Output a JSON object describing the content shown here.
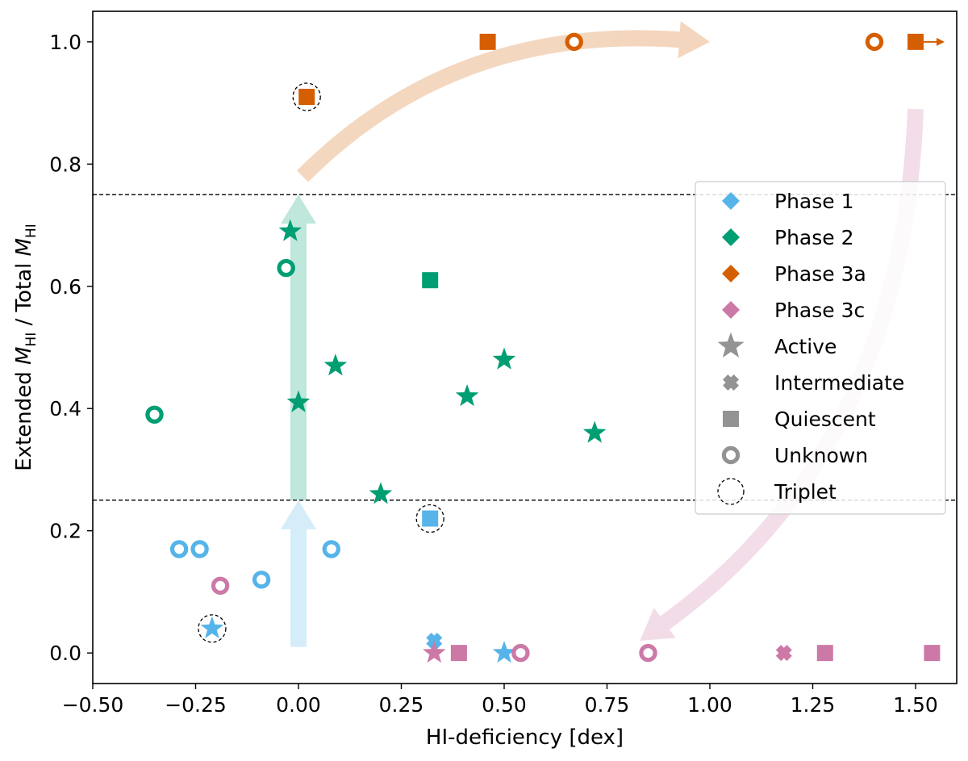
{
  "chart_data": {
    "type": "scatter",
    "xlabel": "HI-deficiency [dex]",
    "ylabel": {
      "prefix": "Extended ",
      "m": "M",
      "sub": "HI",
      "middle": " / Total "
    },
    "xlim": [
      -0.5,
      1.6
    ],
    "ylim": [
      -0.05,
      1.05
    ],
    "xticks": [
      -0.5,
      -0.25,
      0.0,
      0.25,
      0.5,
      0.75,
      1.0,
      1.25,
      1.5
    ],
    "xtick_labels": [
      "−0.50",
      "−0.25",
      "0.00",
      "0.25",
      "0.50",
      "0.75",
      "1.00",
      "1.25",
      "1.50"
    ],
    "yticks": [
      0.0,
      0.2,
      0.4,
      0.6,
      0.8,
      1.0
    ],
    "ytick_labels": [
      "0.0",
      "0.2",
      "0.4",
      "0.6",
      "0.8",
      "1.0"
    ],
    "hlines": [
      0.25,
      0.75
    ],
    "colors": {
      "phase1": "#56B4E9",
      "phase2": "#009E73",
      "phase3a": "#D55E00",
      "phase3c": "#CC79A7",
      "gray": "#939393"
    },
    "arrows": [
      {
        "name": "phase1-arrow",
        "color": "#56B4E9",
        "from": [
          0.0,
          0.01
        ],
        "to": [
          0.0,
          0.25
        ]
      },
      {
        "name": "phase2-arrow",
        "color": "#009E73",
        "from": [
          0.0,
          0.25
        ],
        "to": [
          0.0,
          0.75
        ]
      },
      {
        "name": "phase3a-arrow",
        "color": "#D55E00",
        "from": [
          0.01,
          0.78
        ],
        "ctrl": [
          0.38,
          1.03
        ],
        "to": [
          1.0,
          1.0
        ]
      },
      {
        "name": "phase3c-arrow",
        "color": "#CC79A7",
        "from": [
          1.5,
          0.89
        ],
        "ctrl": [
          1.47,
          0.33
        ],
        "to": [
          0.83,
          0.02
        ]
      }
    ],
    "points": [
      {
        "phase": "phase1",
        "marker": "unknown",
        "x": -0.29,
        "y": 0.17
      },
      {
        "phase": "phase1",
        "marker": "unknown",
        "x": -0.24,
        "y": 0.17
      },
      {
        "phase": "phase1",
        "marker": "unknown",
        "x": -0.09,
        "y": 0.12
      },
      {
        "phase": "phase1",
        "marker": "unknown",
        "x": 0.08,
        "y": 0.17
      },
      {
        "phase": "phase1",
        "marker": "active",
        "x": -0.21,
        "y": 0.04,
        "triplet": true
      },
      {
        "phase": "phase1",
        "marker": "quiescent",
        "x": 0.32,
        "y": 0.22,
        "triplet": true
      },
      {
        "phase": "phase1",
        "marker": "intermediate",
        "x": 0.33,
        "y": 0.02
      },
      {
        "phase": "phase1",
        "marker": "intermediate",
        "x": 0.39,
        "y": 0.0
      },
      {
        "phase": "phase1",
        "marker": "active",
        "x": 0.5,
        "y": 0.0
      },
      {
        "phase": "phase2",
        "marker": "unknown",
        "x": -0.35,
        "y": 0.39
      },
      {
        "phase": "phase2",
        "marker": "unknown",
        "x": -0.03,
        "y": 0.63
      },
      {
        "phase": "phase2",
        "marker": "active",
        "x": -0.02,
        "y": 0.69
      },
      {
        "phase": "phase2",
        "marker": "active",
        "x": 0.09,
        "y": 0.47
      },
      {
        "phase": "phase2",
        "marker": "active",
        "x": 0.0,
        "y": 0.41
      },
      {
        "phase": "phase2",
        "marker": "active",
        "x": 0.2,
        "y": 0.26
      },
      {
        "phase": "phase2",
        "marker": "active",
        "x": 0.41,
        "y": 0.42
      },
      {
        "phase": "phase2",
        "marker": "active",
        "x": 0.5,
        "y": 0.48
      },
      {
        "phase": "phase2",
        "marker": "active",
        "x": 0.72,
        "y": 0.36
      },
      {
        "phase": "phase2",
        "marker": "quiescent",
        "x": 0.32,
        "y": 0.61
      },
      {
        "phase": "phase3a",
        "marker": "quiescent",
        "x": 0.46,
        "y": 1.0
      },
      {
        "phase": "phase3a",
        "marker": "unknown",
        "x": 0.67,
        "y": 1.0
      },
      {
        "phase": "phase3a",
        "marker": "unknown",
        "x": 1.4,
        "y": 1.0
      },
      {
        "phase": "phase3a",
        "marker": "quiescent",
        "x": 1.5,
        "y": 1.0,
        "limit_arrow": true
      },
      {
        "phase": "phase3a",
        "marker": "quiescent",
        "x": 0.02,
        "y": 0.91,
        "triplet": true
      },
      {
        "phase": "phase3c",
        "marker": "unknown",
        "x": -0.19,
        "y": 0.11
      },
      {
        "phase": "phase3c",
        "marker": "active",
        "x": 0.33,
        "y": 0.0
      },
      {
        "phase": "phase3c",
        "marker": "quiescent",
        "x": 0.39,
        "y": 0.0
      },
      {
        "phase": "phase3c",
        "marker": "unknown",
        "x": 0.54,
        "y": 0.0
      },
      {
        "phase": "phase3c",
        "marker": "unknown",
        "x": 0.85,
        "y": 0.0
      },
      {
        "phase": "phase3c",
        "marker": "intermediate",
        "x": 1.18,
        "y": 0.0
      },
      {
        "phase": "phase3c",
        "marker": "quiescent",
        "x": 1.28,
        "y": 0.0
      },
      {
        "phase": "phase3c",
        "marker": "quiescent",
        "x": 1.54,
        "y": 0.0
      }
    ],
    "legend": {
      "position": "center-right",
      "entries": [
        {
          "label": "Phase 1",
          "kind": "color",
          "key": "phase1"
        },
        {
          "label": "Phase 2",
          "kind": "color",
          "key": "phase2"
        },
        {
          "label": "Phase 3a",
          "kind": "color",
          "key": "phase3a"
        },
        {
          "label": "Phase 3c",
          "kind": "color",
          "key": "phase3c"
        },
        {
          "label": "Active",
          "kind": "marker",
          "key": "active"
        },
        {
          "label": "Intermediate",
          "kind": "marker",
          "key": "intermediate"
        },
        {
          "label": "Quiescent",
          "kind": "marker",
          "key": "quiescent"
        },
        {
          "label": "Unknown",
          "kind": "marker",
          "key": "unknown"
        },
        {
          "label": "Triplet",
          "kind": "marker",
          "key": "triplet"
        }
      ]
    }
  }
}
